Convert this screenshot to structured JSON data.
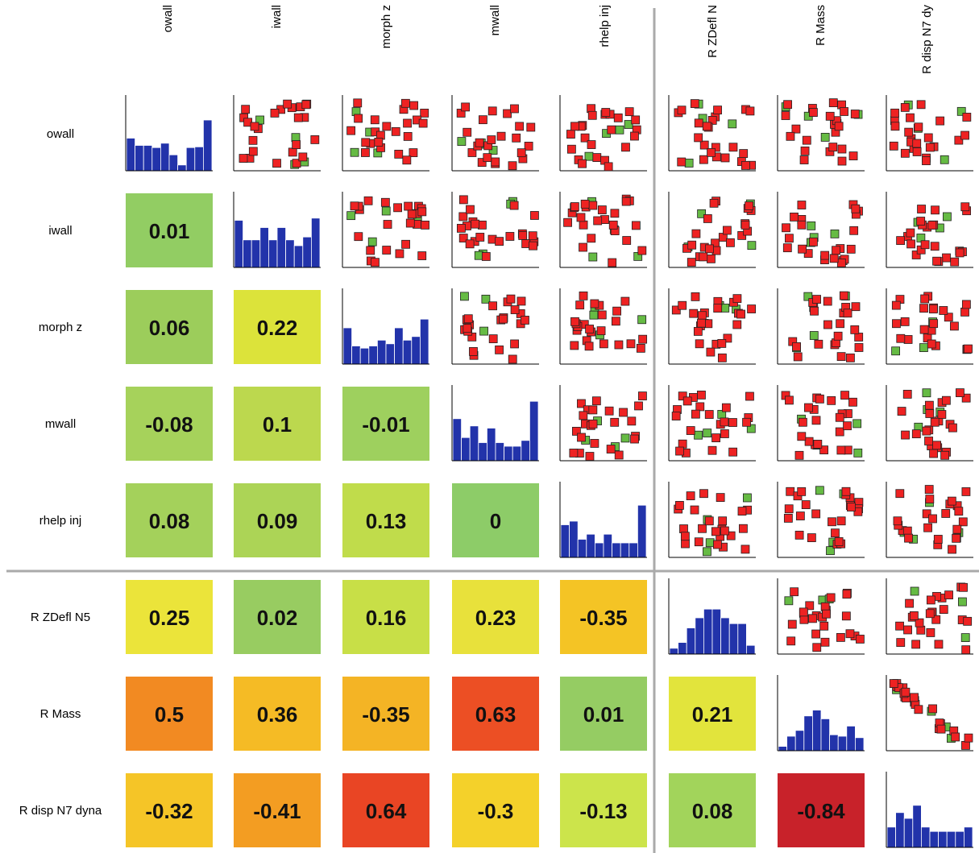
{
  "chart_data": {
    "type": "scatter-matrix",
    "variables": [
      "owall",
      "iwall",
      "morph z",
      "mwall",
      "rhelp inj",
      "R ZDefl N5",
      "R Mass",
      "R disp N7 dyna"
    ],
    "column_labels": [
      "owall",
      "iwall",
      "morph z",
      "mwall",
      "rhelp inj",
      "R ZDefl N",
      "R Mass",
      "R disp N7 dy"
    ],
    "row_labels": [
      "owall",
      "iwall",
      "morph z",
      "mwall",
      "rhelp inj",
      "R ZDefl N5",
      "R Mass",
      "R disp N7 dyna"
    ],
    "groups": {
      "inputs": 5,
      "outputs": 3
    },
    "correlations": [
      {
        "row": 1,
        "col": 0,
        "value": "0.01",
        "color": "#92cd63"
      },
      {
        "row": 2,
        "col": 0,
        "value": "0.06",
        "color": "#9ccd5b"
      },
      {
        "row": 2,
        "col": 1,
        "value": "0.22",
        "color": "#dce33a"
      },
      {
        "row": 3,
        "col": 0,
        "value": "-0.08",
        "color": "#a6d25b"
      },
      {
        "row": 3,
        "col": 1,
        "value": "0.1",
        "color": "#bcd84e"
      },
      {
        "row": 3,
        "col": 2,
        "value": "-0.01",
        "color": "#9ed05e"
      },
      {
        "row": 4,
        "col": 0,
        "value": "0.08",
        "color": "#a4d15b"
      },
      {
        "row": 4,
        "col": 1,
        "value": "0.09",
        "color": "#acd456"
      },
      {
        "row": 4,
        "col": 2,
        "value": "0.13",
        "color": "#c0dc4b"
      },
      {
        "row": 4,
        "col": 3,
        "value": "0",
        "color": "#8dcc68"
      },
      {
        "row": 5,
        "col": 0,
        "value": "0.25",
        "color": "#ebe43a"
      },
      {
        "row": 5,
        "col": 1,
        "value": "0.02",
        "color": "#98cc61"
      },
      {
        "row": 5,
        "col": 2,
        "value": "0.16",
        "color": "#c8df47"
      },
      {
        "row": 5,
        "col": 3,
        "value": "0.23",
        "color": "#e8e13b"
      },
      {
        "row": 5,
        "col": 4,
        "value": "-0.35",
        "color": "#f4c425"
      },
      {
        "row": 6,
        "col": 0,
        "value": "0.5",
        "color": "#f28a22"
      },
      {
        "row": 6,
        "col": 1,
        "value": "0.36",
        "color": "#f5bb25"
      },
      {
        "row": 6,
        "col": 2,
        "value": "-0.35",
        "color": "#f4b425"
      },
      {
        "row": 6,
        "col": 3,
        "value": "0.63",
        "color": "#ec4f24"
      },
      {
        "row": 6,
        "col": 4,
        "value": "0.01",
        "color": "#95cc63"
      },
      {
        "row": 6,
        "col": 5,
        "value": "0.21",
        "color": "#e2e43c"
      },
      {
        "row": 7,
        "col": 0,
        "value": "-0.32",
        "color": "#f5c527"
      },
      {
        "row": 7,
        "col": 1,
        "value": "-0.41",
        "color": "#f39d22"
      },
      {
        "row": 7,
        "col": 2,
        "value": "0.64",
        "color": "#e94524"
      },
      {
        "row": 7,
        "col": 3,
        "value": "-0.3",
        "color": "#f4d12a"
      },
      {
        "row": 7,
        "col": 4,
        "value": "-0.13",
        "color": "#cce44b"
      },
      {
        "row": 7,
        "col": 5,
        "value": "0.08",
        "color": "#a2d45b"
      },
      {
        "row": 7,
        "col": 6,
        "value": "-0.84",
        "color": "#c8222a"
      }
    ],
    "histograms": [
      [
        0.45,
        0.35,
        0.35,
        0.32,
        0.38,
        0.22,
        0.08,
        0.32,
        0.33,
        0.7
      ],
      [
        0.65,
        0.38,
        0.38,
        0.55,
        0.38,
        0.55,
        0.38,
        0.3,
        0.42,
        0.68
      ],
      [
        0.5,
        0.25,
        0.22,
        0.25,
        0.33,
        0.28,
        0.5,
        0.33,
        0.38,
        0.62
      ],
      [
        0.58,
        0.32,
        0.48,
        0.25,
        0.45,
        0.25,
        0.2,
        0.2,
        0.28,
        0.82
      ],
      [
        0.45,
        0.5,
        0.25,
        0.32,
        0.2,
        0.32,
        0.2,
        0.2,
        0.2,
        0.72
      ],
      [
        0.08,
        0.16,
        0.36,
        0.5,
        0.62,
        0.62,
        0.5,
        0.42,
        0.42,
        0.12
      ],
      [
        0.06,
        0.2,
        0.28,
        0.48,
        0.56,
        0.44,
        0.22,
        0.2,
        0.34,
        0.18
      ],
      [
        0.28,
        0.48,
        0.4,
        0.58,
        0.28,
        0.22,
        0.22,
        0.22,
        0.22,
        0.28
      ]
    ],
    "point_colors": {
      "highlight": "#66bb44",
      "normal": "#ee2222"
    },
    "histogram_color": "#2233aa",
    "divider_color": "#aaaaaa"
  }
}
